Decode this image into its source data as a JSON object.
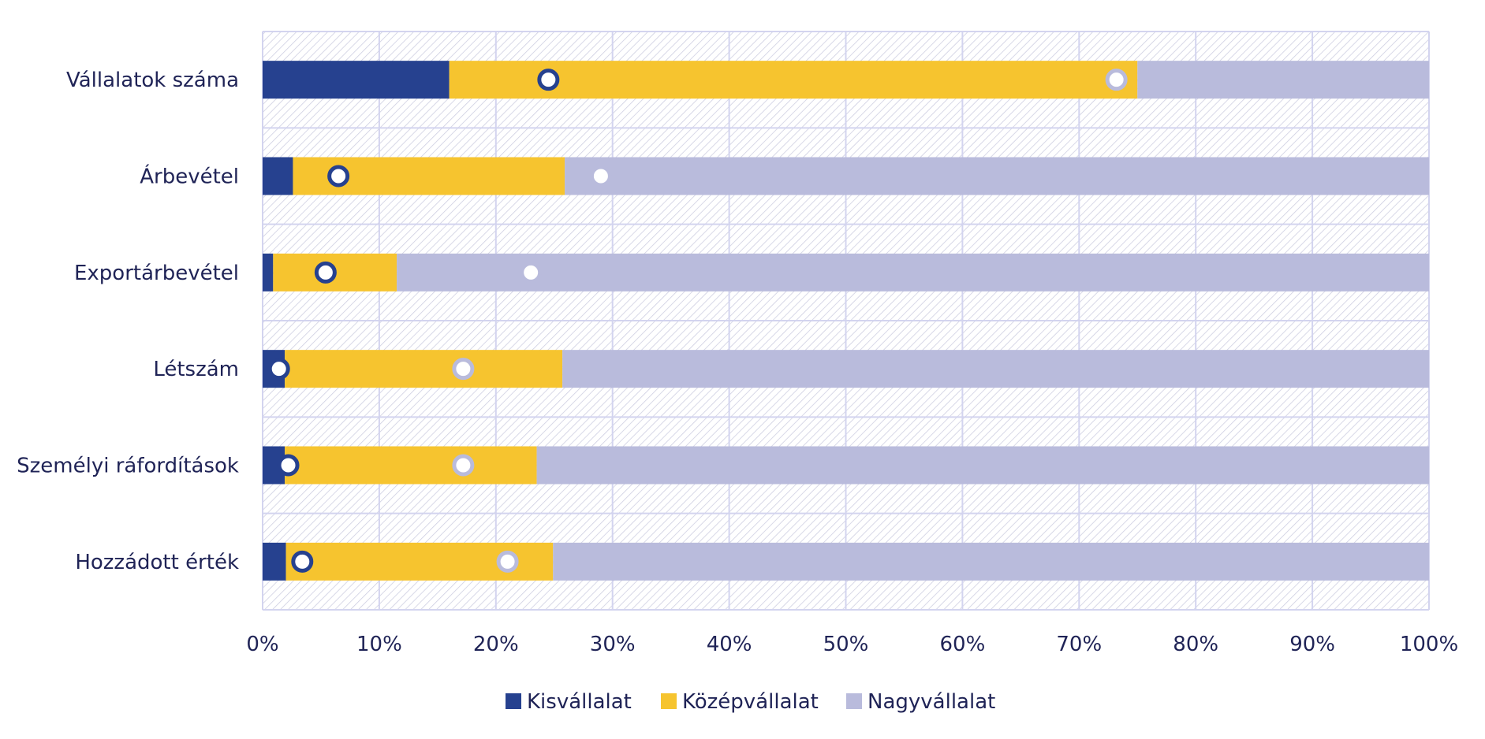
{
  "chart_data": {
    "type": "bar",
    "orientation": "horizontal",
    "stacked": true,
    "percent_scale": true,
    "categories": [
      "Vállalatok száma",
      "Árbevétel",
      "Exportárbevétel",
      "Létszám",
      "Személyi ráfordítások",
      "Hozzádott érték"
    ],
    "series": [
      {
        "name": "Kisvállalat",
        "color": "#26418f",
        "values": [
          16,
          2.6,
          0.9,
          1.9,
          1.9,
          2.0
        ]
      },
      {
        "name": "Középvállalat",
        "color": "#f6c42f",
        "values": [
          59,
          23.3,
          10.6,
          23.8,
          21.6,
          22.9
        ]
      },
      {
        "name": "Nagyvállalat",
        "color": "#b9bbdc",
        "values": [
          25,
          74.1,
          88.5,
          74.3,
          76.5,
          75.1
        ]
      }
    ],
    "markers": [
      {
        "series": "Kisvállalat",
        "style": "ring-dark",
        "values": [
          24.5,
          6.5,
          5.4,
          1.4,
          2.2,
          3.4
        ]
      },
      {
        "series": "Középvállalat",
        "style": "ring-light",
        "values": [
          73.2,
          29.0,
          23.0,
          17.2,
          17.2,
          21.0
        ]
      }
    ],
    "xaxis": {
      "ticks": [
        "0%",
        "10%",
        "20%",
        "30%",
        "40%",
        "50%",
        "60%",
        "70%",
        "80%",
        "90%",
        "100%"
      ],
      "min": 0,
      "max": 100
    },
    "legend": {
      "position": "bottom",
      "items": [
        "Kisvállalat",
        "Középvállalat",
        "Nagyvállalat"
      ]
    },
    "grid": true,
    "colors": {
      "text": "#1f2356",
      "grid": "#d3d4ef",
      "hatch": "#c9cadf",
      "ring_dark": "#26418f",
      "ring_light": "#b9bbdc"
    }
  }
}
